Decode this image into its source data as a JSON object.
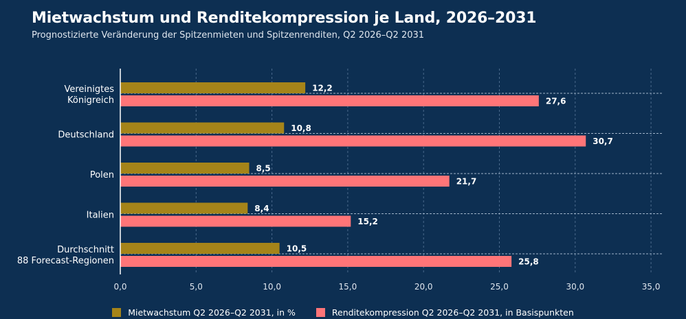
{
  "title": "Mietwachstum und Renditekompression je Land, 2026–2031",
  "subtitle": "Prognostizierte Veränderung der Spitzenmieten und Spitzenrenditen, Q2 2026–Q2 2031",
  "colors": {
    "background": "#0d2f52",
    "series_rent": "#a58419",
    "series_yield": "#ff7578",
    "grid": "#4a6a8c",
    "text": "#ffffff"
  },
  "chart_data": {
    "type": "bar",
    "orientation": "horizontal",
    "categories": [
      [
        "Vereinigtes",
        "Königreich"
      ],
      [
        "Deutschland"
      ],
      [
        "Polen"
      ],
      [
        "Italien"
      ],
      [
        "Durchschnitt",
        "88 Forecast-Regionen"
      ]
    ],
    "series": [
      {
        "name": "Mietwachstum Q2 2026–Q2 2031, in %",
        "values": [
          12.2,
          10.8,
          8.5,
          8.4,
          10.5
        ],
        "labels": [
          "12,2",
          "10,8",
          "8,5",
          "8,4",
          "10,5"
        ]
      },
      {
        "name": "Renditekompression Q2 2026–Q2 2031, in Basispunkten",
        "values": [
          27.6,
          30.7,
          21.7,
          15.2,
          25.8
        ],
        "labels": [
          "27,6",
          "30,7",
          "21,7",
          "15,2",
          "25,8"
        ]
      }
    ],
    "xlim": [
      0,
      35
    ],
    "x_ticks": [
      "0,0",
      "5,0",
      "10,0",
      "15,0",
      "20,0",
      "25,0",
      "30,0",
      "35,0"
    ],
    "grid": true,
    "legend_position": "bottom"
  }
}
